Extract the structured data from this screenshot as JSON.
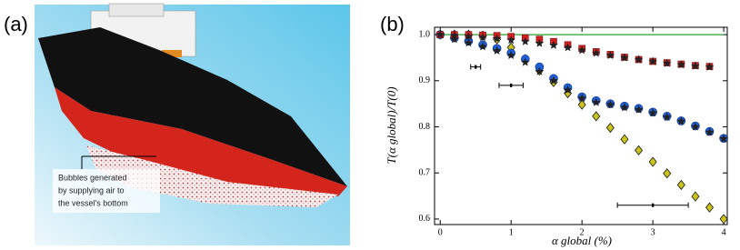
{
  "panel_labels": [
    "(a)",
    "(b)"
  ],
  "image": {
    "caption": [
      "Bubbles generated",
      "by supplying air to",
      "the vessel's bottom"
    ]
  },
  "chart_data": {
    "type": "scatter",
    "xlabel": "α global (%)",
    "ylabel": "T(α global)/T(0)",
    "xlim": [
      -0.08,
      4.05
    ],
    "ylim": [
      0.588,
      1.016
    ],
    "xticks": [
      0,
      1,
      2,
      3,
      4
    ],
    "yticks": [
      0.6,
      0.7,
      0.8,
      0.9,
      {
        "value": 1,
        "label": "1.0"
      }
    ],
    "x": [
      0,
      0.2,
      0.4,
      0.6,
      0.8,
      1,
      1.2,
      1.4,
      1.6,
      1.8,
      2,
      2.2,
      2.4,
      2.6,
      2.8,
      3,
      3.2,
      3.4,
      3.6,
      3.8,
      4
    ],
    "series": [
      {
        "marker": "line",
        "color": "#2ca02c",
        "values": [
          1,
          1,
          1,
          1,
          1,
          1,
          1,
          1,
          1,
          1,
          1,
          1,
          1,
          1,
          1,
          1,
          1,
          1,
          1,
          1,
          1
        ]
      },
      {
        "marker": "diamond",
        "color": "#c9c21e",
        "values": [
          1,
          1,
          1,
          0.998,
          0.99,
          0.972,
          0.947,
          0.922,
          0.897,
          0.873,
          0.848,
          0.823,
          0.798,
          0.773,
          0.749,
          0.724,
          0.699,
          0.674,
          0.649,
          0.625,
          0.6
        ]
      },
      {
        "marker": "circle",
        "color": "#1f5fd6",
        "values": [
          1,
          0.993,
          0.986,
          0.978,
          0.97,
          0.96,
          0.947,
          0.93,
          0.905,
          0.885,
          0.865,
          0.857,
          0.85,
          0.845,
          0.84,
          0.832,
          0.823,
          0.813,
          0.802,
          0.79,
          0.775
        ]
      },
      {
        "marker": "star",
        "color": "#222222",
        "values": [
          1,
          0.99,
          0.982,
          0.974,
          0.965,
          0.955,
          0.94,
          0.92,
          0.9,
          0.88,
          0.862,
          0.853,
          0.848,
          0.842,
          0.837,
          0.83,
          0.821,
          0.812,
          0.8,
          0.788,
          0.774
        ]
      },
      {
        "marker": "square",
        "color": "#d62020",
        "values": [
          1,
          1,
          1,
          0.999,
          0.998,
          0.996,
          0.993,
          0.99,
          0.985,
          0.978,
          0.97,
          0.963,
          0.957,
          0.951,
          0.946,
          0.942,
          0.939,
          0.936,
          0.933,
          0.931,
          null
        ]
      },
      {
        "marker": "star",
        "color": "#222222",
        "values": [
          1,
          0.998,
          0.996,
          0.994,
          0.991,
          0.988,
          0.985,
          0.981,
          0.977,
          0.972,
          0.966,
          0.96,
          0.955,
          0.95,
          0.946,
          0.942,
          0.938,
          0.935,
          0.932,
          0.93,
          null
        ]
      }
    ],
    "error_bars": [
      {
        "x": 0.5,
        "y": 0.93,
        "xerr": 0.07
      },
      {
        "x": 1,
        "y": 0.89,
        "xerr": 0.17
      },
      {
        "x": 3,
        "y": 0.63,
        "xerr": 0.5
      }
    ]
  }
}
